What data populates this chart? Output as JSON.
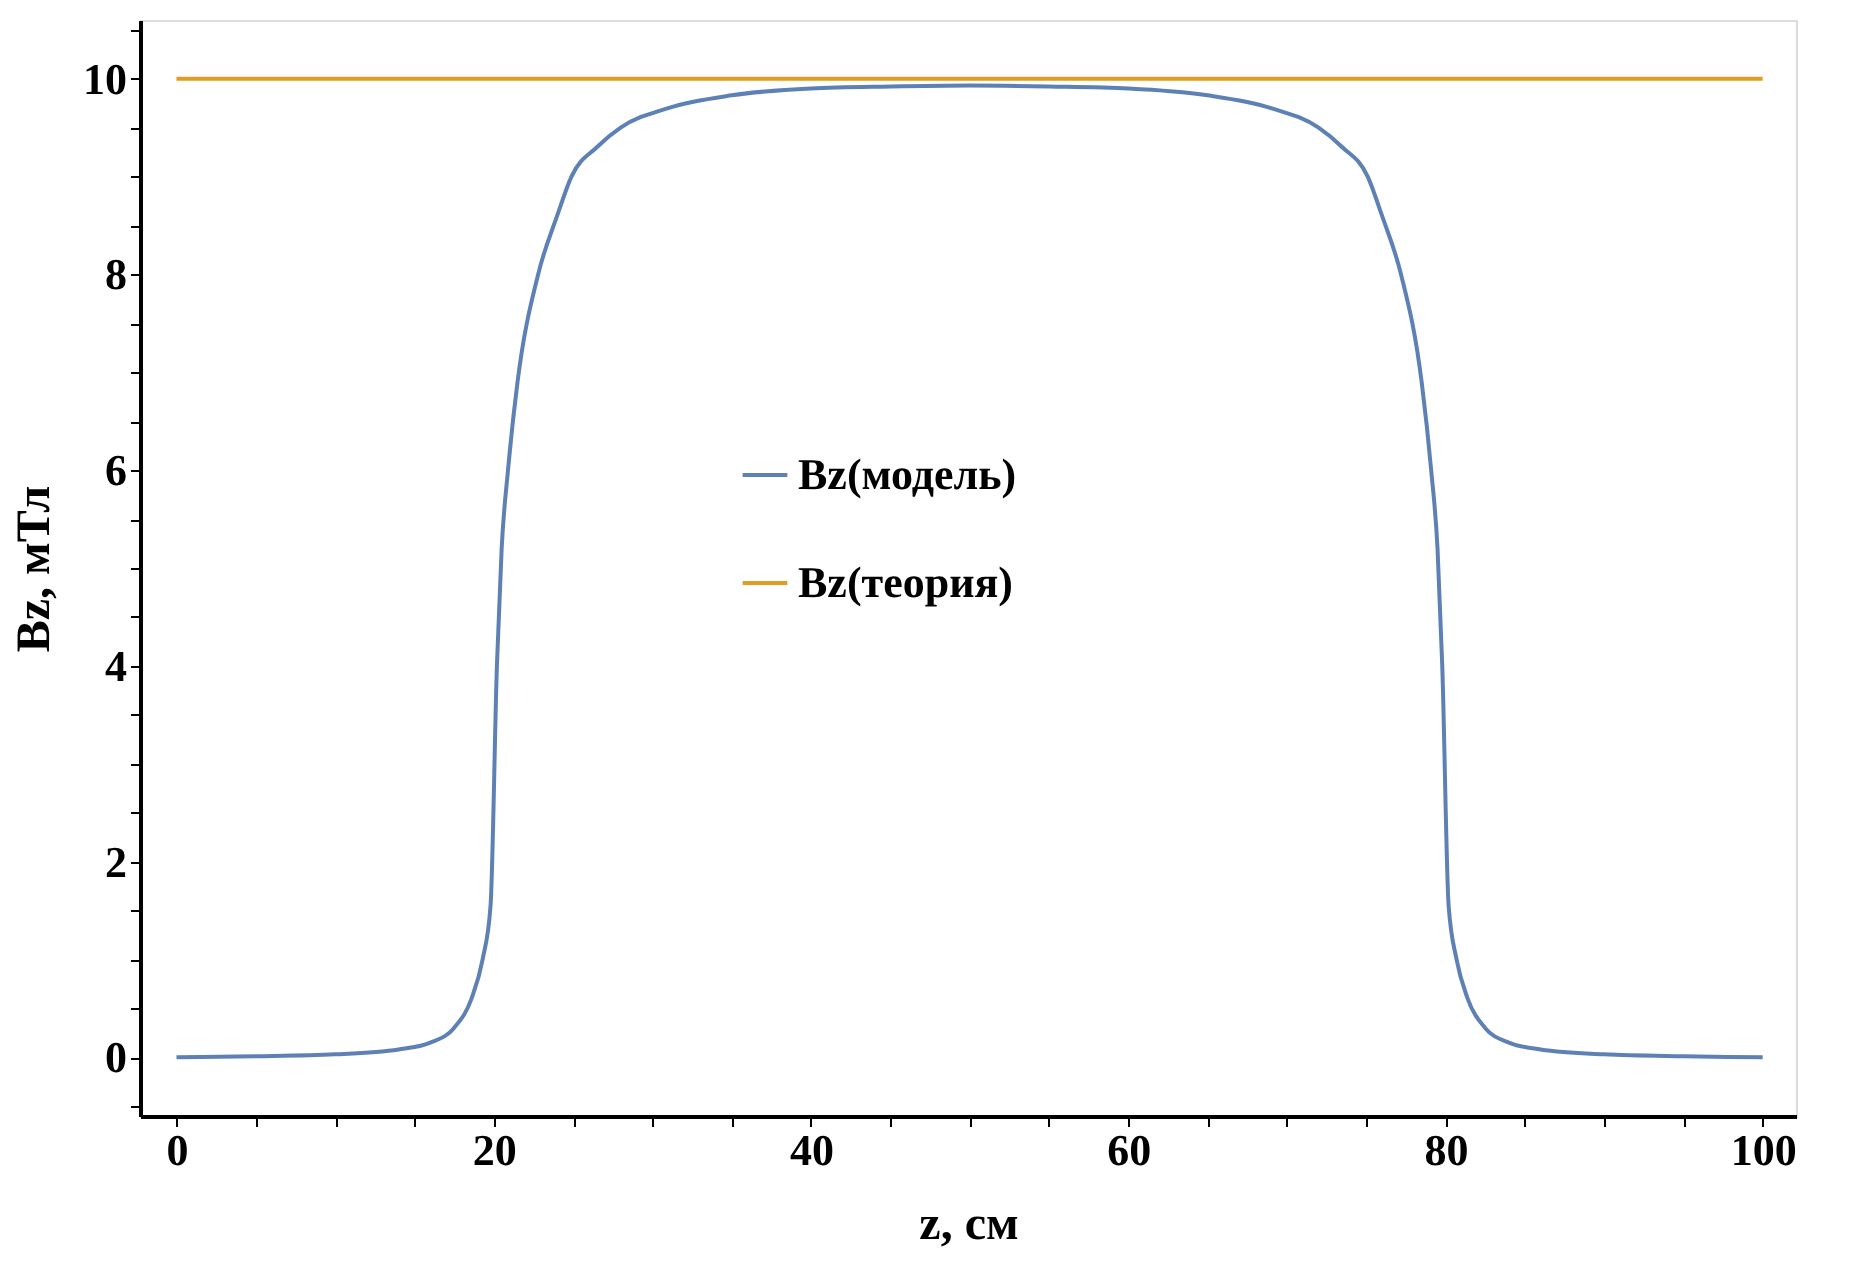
{
  "chart_data": {
    "type": "line",
    "xlabel": "z, см",
    "ylabel": "Bz, мТл",
    "xlim": [
      -2.3,
      102.1
    ],
    "ylim": [
      -0.6,
      10.6
    ],
    "xticks": [
      0,
      {
        "value": 5,
        "label": null
      },
      {
        "value": 10,
        "label": null
      },
      {
        "value": 15,
        "label": null
      },
      20,
      {
        "value": 25,
        "label": null
      },
      {
        "value": 30,
        "label": null
      },
      {
        "value": 35,
        "label": null
      },
      40,
      {
        "value": 45,
        "label": null
      },
      {
        "value": 50,
        "label": null
      },
      {
        "value": 55,
        "label": null
      },
      60,
      {
        "value": 65,
        "label": null
      },
      {
        "value": 70,
        "label": null
      },
      {
        "value": 75,
        "label": null
      },
      80,
      {
        "value": 85,
        "label": null
      },
      {
        "value": 90,
        "label": null
      },
      {
        "value": 95,
        "label": null
      },
      100
    ],
    "yticks": [
      {
        "value": -0.5,
        "label": null
      },
      0,
      {
        "value": 0.5,
        "label": null
      },
      {
        "value": 1,
        "label": null
      },
      {
        "value": 1.5,
        "label": null
      },
      2,
      {
        "value": 2.5,
        "label": null
      },
      {
        "value": 3,
        "label": null
      },
      {
        "value": 3.5,
        "label": null
      },
      4,
      {
        "value": 4.5,
        "label": null
      },
      {
        "value": 5,
        "label": null
      },
      {
        "value": 5.5,
        "label": null
      },
      6,
      {
        "value": 6.5,
        "label": null
      },
      {
        "value": 7,
        "label": null
      },
      {
        "value": 7.5,
        "label": null
      },
      8,
      {
        "value": 8.5,
        "label": null
      },
      {
        "value": 9,
        "label": null
      },
      {
        "value": 9.5,
        "label": null
      },
      10,
      {
        "value": 10.5,
        "label": null
      }
    ],
    "grid": false,
    "legend": "center",
    "line_style": "solid",
    "marker": "none",
    "series": [
      {
        "name": "Bz(модель)",
        "color": "#5e81b5",
        "x": [
          0,
          5,
          10,
          14,
          16,
          17.5,
          18.6,
          19.3,
          19.8,
          20.2,
          20.5,
          20.9,
          21.5,
          22.8,
          24,
          24.9,
          26.5,
          28,
          31,
          35,
          40,
          45,
          50,
          55,
          60,
          65,
          69,
          72,
          73.5,
          75.1,
          76,
          77.2,
          78.5,
          79.1,
          79.5,
          79.8,
          80.2,
          80.7,
          81.4,
          82.5,
          84,
          86,
          90,
          95,
          100
        ],
        "values": [
          0,
          0.01,
          0.03,
          0.08,
          0.15,
          0.3,
          0.6,
          1.0,
          1.55,
          4.0,
          5.2,
          6.0,
          6.9,
          8.0,
          8.6,
          9.0,
          9.3,
          9.5,
          9.7,
          9.83,
          9.9,
          9.92,
          9.93,
          9.92,
          9.9,
          9.83,
          9.7,
          9.5,
          9.3,
          9.0,
          8.6,
          8.0,
          6.9,
          6.0,
          5.2,
          4.0,
          1.55,
          1.0,
          0.6,
          0.3,
          0.15,
          0.08,
          0.03,
          0.01,
          0
        ]
      },
      {
        "name": "Bz(теория)",
        "color": "#e19c24",
        "x": [
          0,
          100
        ],
        "values": [
          10,
          10
        ]
      }
    ]
  }
}
